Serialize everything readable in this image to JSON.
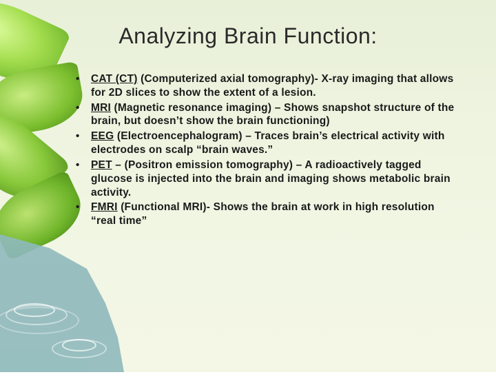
{
  "colors": {
    "background_top": "#e8f0d8",
    "background_bottom": "#f4f7e6",
    "leaf_light": "#d6f29a",
    "leaf_mid": "#9bd24a",
    "leaf_dark": "#5aa020",
    "water": "#8fb9bc",
    "ripple": "#ffffff",
    "title_text": "#2a2a2a",
    "body_text": "#1a1a1a"
  },
  "typography": {
    "title_font": "Trebuchet MS",
    "title_size_pt": 24,
    "title_weight": 400,
    "body_font": "Verdana",
    "body_size_pt": 12,
    "body_weight": 700
  },
  "title": "Analyzing Brain Function:",
  "bullets": [
    {
      "term": "CAT (CT)",
      "rest": " (Computerized axial tomography)- X-ray imaging that allows for 2D slices to show the extent of a lesion."
    },
    {
      "term": "MRI",
      "rest": " (Magnetic resonance imaging) – Shows snapshot structure of the brain, but doesn’t show the brain functioning)"
    },
    {
      "term": "EEG",
      "rest": " (Electroencephalogram) – Traces brain’s electrical activity with electrodes on scalp “brain waves.”"
    },
    {
      "term": "PET",
      "rest": " – (Positron emission tomography) – A radioactively tagged glucose is injected into the brain and imaging shows metabolic brain activity."
    },
    {
      "term": "FMRI",
      "rest": " (Functional MRI)- Shows the brain at work in high resolution “real time”"
    }
  ]
}
